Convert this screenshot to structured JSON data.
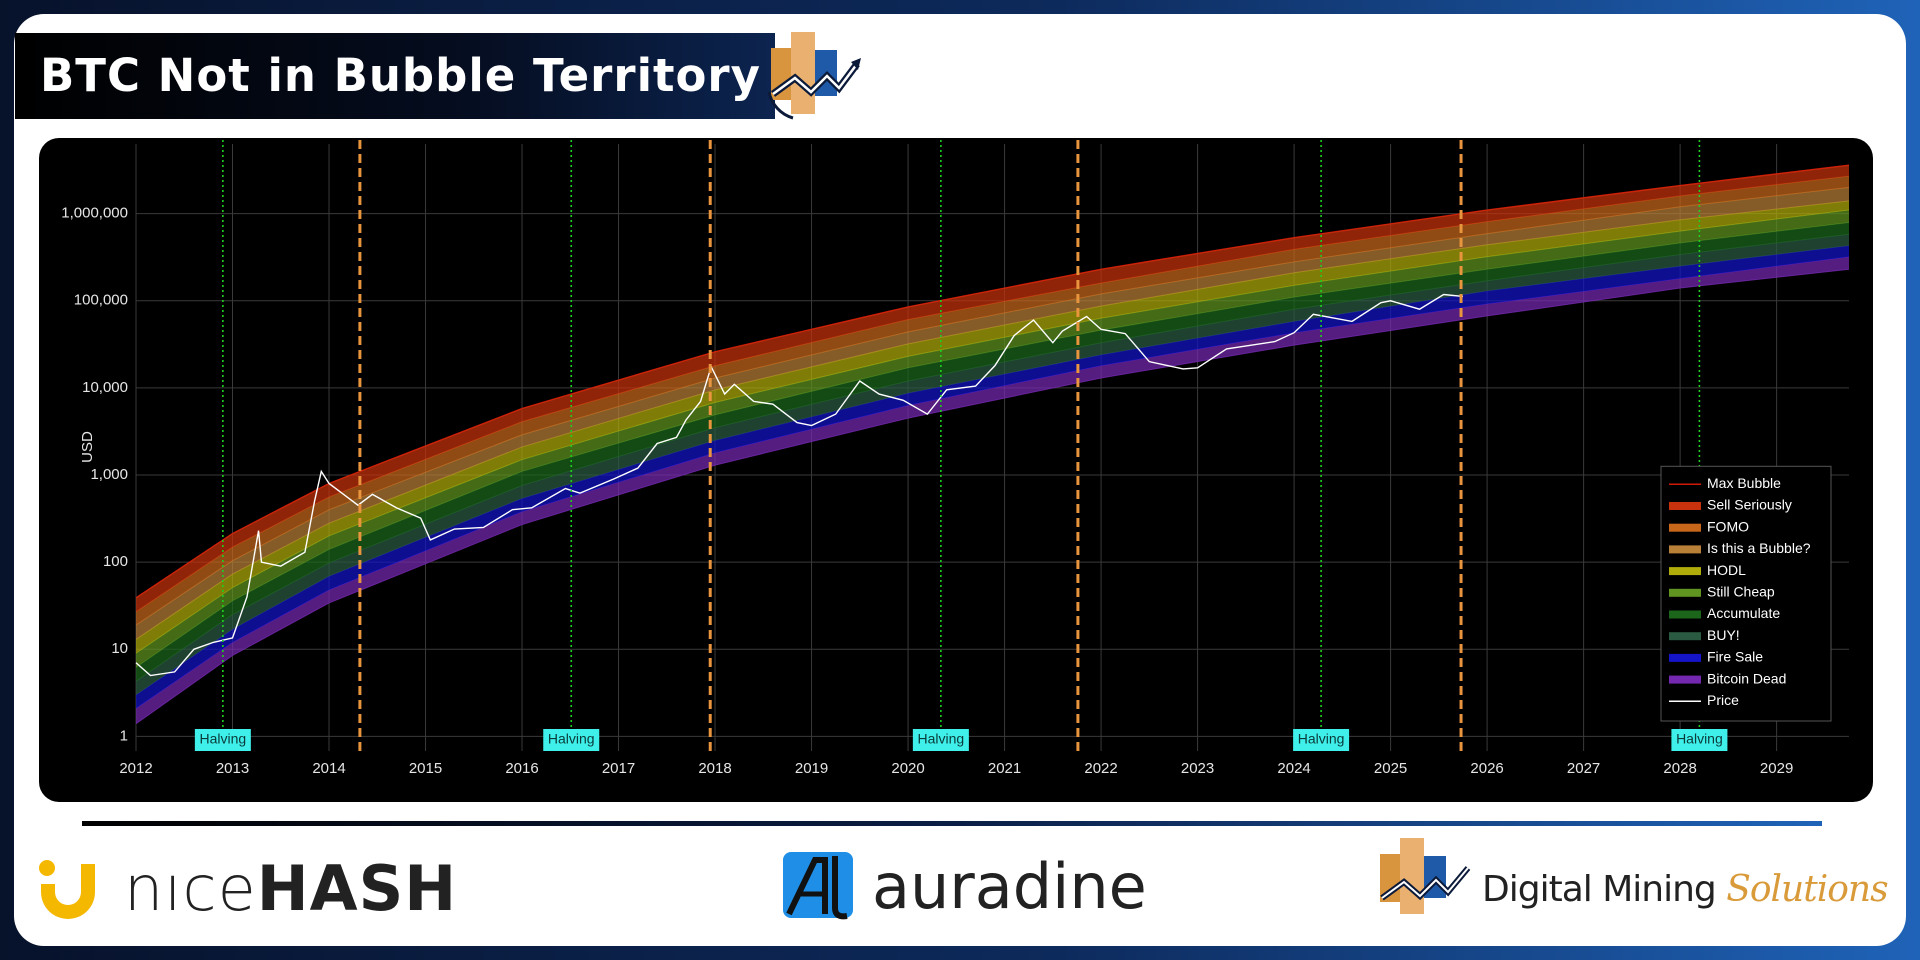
{
  "header": {
    "title": "BTC Not in Bubble Territory"
  },
  "chart_data": {
    "type": "rainbow",
    "y_label": "USD",
    "log_y": true,
    "grid": true,
    "legend": "lower right",
    "xlim": [
      2012,
      2029.75
    ],
    "xticks": [
      2012,
      2013,
      2014,
      2015,
      2016,
      2017,
      2018,
      2019,
      2020,
      2021,
      2022,
      2023,
      2024,
      2025,
      2026,
      2027,
      2028,
      2029
    ],
    "ylim": [
      0.68,
      6300000
    ],
    "yticks": [
      1,
      10,
      100,
      {
        "value": 1000,
        "label": "1,000"
      },
      {
        "value": 10000,
        "label": "10,000"
      },
      {
        "value": 100000,
        "label": "100,000"
      },
      {
        "value": 1000000,
        "label": "1,000,000"
      }
    ],
    "x": [
      2012,
      2013,
      2014,
      2016,
      2018,
      2020,
      2022,
      2024,
      2026,
      2028,
      2029.75
    ],
    "series": [
      {
        "name": "Max Bubble",
        "style": "line",
        "color": "#d01a08",
        "values": [
          39,
          213,
          800,
          5800,
          26000,
          85000,
          230000,
          530000,
          1100000,
          2100000,
          3600000
        ]
      },
      {
        "name": "Sell Seriously",
        "style": "band",
        "color": "#c8320c",
        "values": [
          27,
          149,
          560,
          4100,
          18000,
          61000,
          160000,
          390000,
          810000,
          1600000,
          2700000
        ]
      },
      {
        "name": "FOMO",
        "style": "band",
        "color": "#c8661a",
        "values": [
          19,
          104,
          400,
          2900,
          13000,
          44000,
          120000,
          280000,
          590000,
          1200000,
          2000000
        ]
      },
      {
        "name": "Is this a Bubble?",
        "style": "band",
        "color": "#b98038",
        "values": [
          13,
          73,
          280,
          2100,
          9500,
          32000,
          87000,
          210000,
          440000,
          850000,
          1400000
        ]
      },
      {
        "name": "HODL",
        "style": "band",
        "color": "#b0ac0a",
        "values": [
          9,
          51,
          200,
          1500,
          6800,
          23000,
          63000,
          150000,
          320000,
          630000,
          1100000
        ]
      },
      {
        "name": "Still Cheap",
        "style": "band",
        "color": "#5f9420",
        "values": [
          6.2,
          36,
          140,
          1100,
          4900,
          17000,
          46000,
          110000,
          230000,
          460000,
          790000
        ]
      },
      {
        "name": "Accumulate",
        "style": "band",
        "color": "#1c661c",
        "values": [
          4.3,
          25,
          98,
          760,
          3500,
          12000,
          33000,
          80000,
          170000,
          340000,
          580000
        ]
      },
      {
        "name": "BUY!",
        "style": "band",
        "color": "#2a5a42",
        "values": [
          3,
          17,
          69,
          540,
          2500,
          8700,
          24000,
          58000,
          130000,
          250000,
          430000
        ]
      },
      {
        "name": "Fire Sale",
        "style": "band",
        "color": "#1414c8",
        "values": [
          2.1,
          12,
          48,
          380,
          1800,
          6300,
          18000,
          43000,
          92000,
          180000,
          320000
        ]
      },
      {
        "name": "Bitcoin Dead",
        "style": "band",
        "color": "#7428b0",
        "values": [
          1.4,
          8.5,
          34,
          270,
          1300,
          4500,
          13000,
          31000,
          67000,
          140000,
          230000
        ]
      },
      {
        "name": "Price",
        "style": "line",
        "color": "#ffffff",
        "x": [
          2012.0,
          2012.15,
          2012.4,
          2012.6,
          2012.8,
          2013.0,
          2013.15,
          2013.27,
          2013.3,
          2013.5,
          2013.75,
          2013.85,
          2013.92,
          2014.0,
          2014.15,
          2014.3,
          2014.45,
          2014.7,
          2014.95,
          2015.05,
          2015.3,
          2015.6,
          2015.9,
          2016.1,
          2016.45,
          2016.6,
          2016.95,
          2017.2,
          2017.4,
          2017.6,
          2017.7,
          2017.85,
          2017.96,
          2018.1,
          2018.2,
          2018.4,
          2018.6,
          2018.85,
          2019.0,
          2019.25,
          2019.5,
          2019.7,
          2019.95,
          2020.2,
          2020.4,
          2020.7,
          2020.9,
          2021.1,
          2021.3,
          2021.5,
          2021.6,
          2021.85,
          2022.0,
          2022.25,
          2022.5,
          2022.85,
          2023.0,
          2023.3,
          2023.8,
          2024.0,
          2024.2,
          2024.6,
          2024.9,
          2025.0,
          2025.3,
          2025.55,
          2025.75
        ],
        "values": [
          7,
          5,
          5.5,
          10,
          12,
          13.5,
          40,
          230,
          100,
          90,
          130,
          500,
          1100,
          800,
          600,
          450,
          600,
          420,
          320,
          180,
          240,
          250,
          400,
          420,
          700,
          620,
          900,
          1200,
          2300,
          2700,
          4300,
          7000,
          17500,
          8500,
          11000,
          7000,
          6500,
          4000,
          3700,
          5000,
          12000,
          8500,
          7200,
          5000,
          9500,
          10500,
          18000,
          40000,
          60000,
          33000,
          45000,
          66000,
          47000,
          42000,
          20000,
          16500,
          17000,
          28000,
          34000,
          43000,
          70000,
          58000,
          95000,
          100000,
          80000,
          118000,
          112000
        ]
      }
    ],
    "halving_label": "Halving",
    "halvings": [
      2012.9,
      2016.51,
      2020.34,
      2024.28,
      2028.2
    ],
    "cycle_lines": [
      2014.32,
      2017.95,
      2021.76,
      2025.73
    ]
  },
  "footer": {
    "nicehash": {
      "light": "nıce",
      "bold": "HASH"
    },
    "auradine": "auradine",
    "dms": {
      "main": "Digital Mining",
      "accent": "Solutions"
    }
  }
}
